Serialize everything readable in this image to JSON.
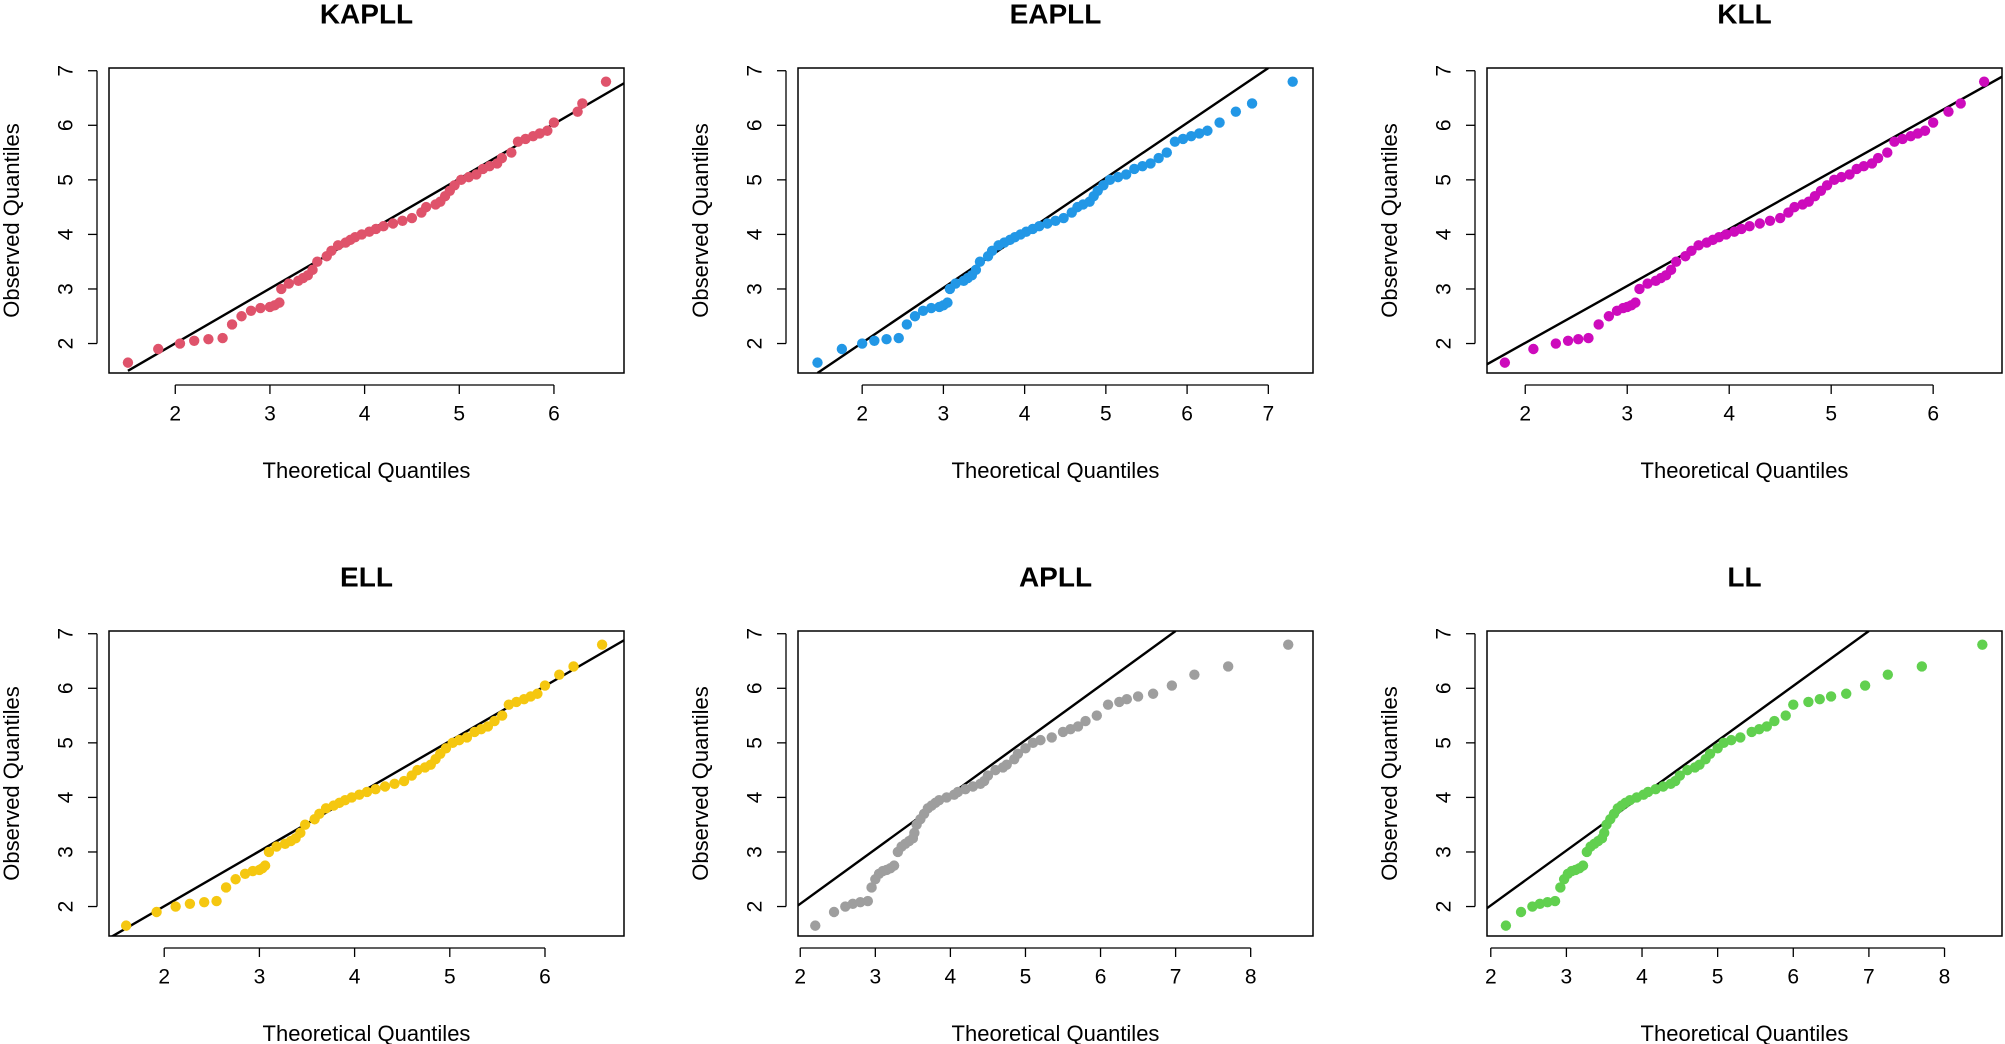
{
  "chart_data": [
    {
      "type": "scatter",
      "title": "KAPLL",
      "xlabel": "Theoretical Quantiles",
      "ylabel": "Observed Quantiles",
      "color": "#DF536B",
      "x": [
        1.5,
        1.82,
        2.05,
        2.2,
        2.35,
        2.5,
        2.6,
        2.7,
        2.8,
        2.9,
        3.0,
        3.05,
        3.1,
        3.12,
        3.2,
        3.3,
        3.35,
        3.4,
        3.45,
        3.5,
        3.6,
        3.65,
        3.72,
        3.8,
        3.85,
        3.9,
        3.97,
        4.05,
        4.12,
        4.2,
        4.3,
        4.4,
        4.5,
        4.6,
        4.65,
        4.75,
        4.8,
        4.85,
        4.9,
        4.95,
        5.02,
        5.1,
        5.18,
        5.25,
        5.32,
        5.4,
        5.45,
        5.55,
        5.62,
        5.7,
        5.78,
        5.85,
        5.93,
        6.0,
        6.25,
        6.3,
        6.55
      ],
      "y": [
        1.65,
        1.9,
        2.0,
        2.05,
        2.08,
        2.1,
        2.35,
        2.5,
        2.6,
        2.65,
        2.67,
        2.7,
        2.75,
        3.0,
        3.1,
        3.15,
        3.2,
        3.25,
        3.35,
        3.5,
        3.6,
        3.7,
        3.8,
        3.85,
        3.9,
        3.95,
        4.0,
        4.05,
        4.1,
        4.15,
        4.2,
        4.25,
        4.3,
        4.4,
        4.5,
        4.55,
        4.6,
        4.7,
        4.8,
        4.9,
        5.0,
        5.05,
        5.1,
        5.2,
        5.25,
        5.3,
        5.4,
        5.5,
        5.7,
        5.75,
        5.8,
        5.85,
        5.9,
        6.05,
        6.25,
        6.4,
        6.8
      ],
      "line": {
        "x": [
          1.5,
          6.74
        ],
        "y": [
          1.5,
          6.77
        ],
        "color": "#000000"
      },
      "xlim": [
        1.3,
        6.74
      ],
      "ylim": [
        1.46,
        7.05
      ],
      "xticks": [
        2,
        3,
        4,
        5,
        6
      ],
      "yticks": [
        2,
        3,
        4,
        5,
        6,
        7
      ]
    },
    {
      "type": "scatter",
      "title": "EAPLL",
      "xlabel": "Theoretical Quantiles",
      "ylabel": "Observed Quantiles",
      "color": "#2297E6",
      "x": [
        1.45,
        1.75,
        2.0,
        2.15,
        2.3,
        2.45,
        2.55,
        2.65,
        2.75,
        2.85,
        2.95,
        3.0,
        3.05,
        3.08,
        3.15,
        3.25,
        3.3,
        3.35,
        3.4,
        3.45,
        3.55,
        3.6,
        3.68,
        3.75,
        3.82,
        3.88,
        3.95,
        4.02,
        4.1,
        4.18,
        4.28,
        4.38,
        4.48,
        4.58,
        4.65,
        4.72,
        4.8,
        4.85,
        4.9,
        4.97,
        5.05,
        5.15,
        5.25,
        5.35,
        5.45,
        5.55,
        5.65,
        5.75,
        5.85,
        5.95,
        6.05,
        6.15,
        6.25,
        6.4,
        6.6,
        6.8,
        7.3
      ],
      "y": [
        1.65,
        1.9,
        2.0,
        2.05,
        2.08,
        2.1,
        2.35,
        2.5,
        2.6,
        2.65,
        2.67,
        2.7,
        2.75,
        3.0,
        3.1,
        3.15,
        3.2,
        3.25,
        3.35,
        3.5,
        3.6,
        3.7,
        3.8,
        3.85,
        3.9,
        3.95,
        4.0,
        4.05,
        4.1,
        4.15,
        4.2,
        4.25,
        4.3,
        4.4,
        4.5,
        4.55,
        4.6,
        4.7,
        4.8,
        4.9,
        5.0,
        5.05,
        5.1,
        5.2,
        5.25,
        5.3,
        5.4,
        5.5,
        5.7,
        5.75,
        5.8,
        5.85,
        5.9,
        6.05,
        6.25,
        6.4,
        6.8
      ],
      "line": {
        "x": [
          1.45,
          7.0
        ],
        "y": [
          1.46,
          7.05
        ],
        "color": "#000000"
      },
      "xlim": [
        1.21,
        7.55
      ],
      "ylim": [
        1.46,
        7.05
      ],
      "xticks": [
        2,
        3,
        4,
        5,
        6,
        7
      ],
      "yticks": [
        2,
        3,
        4,
        5,
        6,
        7
      ]
    },
    {
      "type": "scatter",
      "title": "KLL",
      "xlabel": "Theoretical Quantiles",
      "ylabel": "Observed Quantiles",
      "color": "#CD0BBC",
      "x": [
        1.8,
        2.08,
        2.3,
        2.42,
        2.52,
        2.62,
        2.72,
        2.82,
        2.9,
        2.96,
        3.0,
        3.04,
        3.08,
        3.12,
        3.2,
        3.28,
        3.33,
        3.38,
        3.43,
        3.48,
        3.57,
        3.63,
        3.7,
        3.78,
        3.84,
        3.9,
        3.97,
        4.05,
        4.12,
        4.2,
        4.3,
        4.4,
        4.5,
        4.58,
        4.64,
        4.72,
        4.78,
        4.84,
        4.9,
        4.96,
        5.03,
        5.1,
        5.18,
        5.25,
        5.32,
        5.4,
        5.46,
        5.55,
        5.62,
        5.7,
        5.78,
        5.85,
        5.92,
        6.0,
        6.15,
        6.27,
        6.5
      ],
      "y": [
        1.65,
        1.9,
        2.0,
        2.05,
        2.08,
        2.1,
        2.35,
        2.5,
        2.6,
        2.65,
        2.67,
        2.7,
        2.75,
        3.0,
        3.1,
        3.15,
        3.2,
        3.25,
        3.35,
        3.5,
        3.6,
        3.7,
        3.8,
        3.85,
        3.9,
        3.95,
        4.0,
        4.05,
        4.1,
        4.15,
        4.2,
        4.25,
        4.3,
        4.4,
        4.5,
        4.55,
        4.6,
        4.7,
        4.8,
        4.9,
        5.0,
        5.05,
        5.1,
        5.2,
        5.25,
        5.3,
        5.4,
        5.5,
        5.7,
        5.75,
        5.8,
        5.85,
        5.9,
        6.05,
        6.25,
        6.4,
        6.8
      ],
      "line": {
        "x": [
          1.625,
          6.675
        ],
        "y": [
          1.62,
          6.89
        ],
        "color": "#000000"
      },
      "xlim": [
        1.625,
        6.675
      ],
      "ylim": [
        1.46,
        7.05
      ],
      "xticks": [
        2,
        3,
        4,
        5,
        6
      ],
      "yticks": [
        2,
        3,
        4,
        5,
        6,
        7
      ]
    },
    {
      "type": "scatter",
      "title": "ELL",
      "xlabel": "Theoretical Quantiles",
      "ylabel": "Observed Quantiles",
      "color": "#F5C710",
      "x": [
        1.6,
        1.92,
        2.12,
        2.27,
        2.42,
        2.55,
        2.65,
        2.75,
        2.85,
        2.93,
        3.0,
        3.03,
        3.06,
        3.1,
        3.18,
        3.27,
        3.33,
        3.38,
        3.43,
        3.48,
        3.58,
        3.63,
        3.7,
        3.78,
        3.84,
        3.9,
        3.97,
        4.05,
        4.13,
        4.22,
        4.32,
        4.42,
        4.52,
        4.6,
        4.66,
        4.74,
        4.8,
        4.85,
        4.9,
        4.96,
        5.03,
        5.1,
        5.18,
        5.26,
        5.33,
        5.4,
        5.47,
        5.55,
        5.62,
        5.7,
        5.78,
        5.85,
        5.92,
        6.0,
        6.15,
        6.3,
        6.6
      ],
      "y": [
        1.65,
        1.9,
        2.0,
        2.05,
        2.08,
        2.1,
        2.35,
        2.5,
        2.6,
        2.65,
        2.67,
        2.7,
        2.75,
        3.0,
        3.1,
        3.15,
        3.2,
        3.25,
        3.35,
        3.5,
        3.6,
        3.7,
        3.8,
        3.85,
        3.9,
        3.95,
        4.0,
        4.05,
        4.1,
        4.15,
        4.2,
        4.25,
        4.3,
        4.4,
        4.5,
        4.55,
        4.6,
        4.7,
        4.8,
        4.9,
        5.0,
        5.05,
        5.1,
        5.2,
        5.25,
        5.3,
        5.4,
        5.5,
        5.7,
        5.75,
        5.8,
        5.85,
        5.9,
        6.05,
        6.25,
        6.4,
        6.8
      ],
      "line": {
        "x": [
          1.42,
          6.83
        ],
        "y": [
          1.42,
          6.88
        ],
        "color": "#000000"
      },
      "xlim": [
        1.42,
        6.83
      ],
      "ylim": [
        1.46,
        7.05
      ],
      "xticks": [
        2,
        3,
        4,
        5,
        6
      ],
      "yticks": [
        2,
        3,
        4,
        5,
        6,
        7
      ]
    },
    {
      "type": "scatter",
      "title": "APLL",
      "xlabel": "Theoretical Quantiles",
      "ylabel": "Observed Quantiles",
      "color": "#9E9E9E",
      "x": [
        2.2,
        2.45,
        2.6,
        2.7,
        2.8,
        2.9,
        2.95,
        3.0,
        3.05,
        3.1,
        3.15,
        3.2,
        3.25,
        3.3,
        3.35,
        3.4,
        3.45,
        3.5,
        3.52,
        3.55,
        3.6,
        3.65,
        3.7,
        3.75,
        3.8,
        3.85,
        3.95,
        4.05,
        4.1,
        4.2,
        4.3,
        4.4,
        4.45,
        4.5,
        4.6,
        4.7,
        4.75,
        4.85,
        4.9,
        5.0,
        5.1,
        5.2,
        5.35,
        5.5,
        5.6,
        5.7,
        5.8,
        5.95,
        6.1,
        6.25,
        6.35,
        6.5,
        6.7,
        6.95,
        7.25,
        7.7,
        8.5
      ],
      "y": [
        1.65,
        1.9,
        2.0,
        2.05,
        2.08,
        2.1,
        2.35,
        2.5,
        2.6,
        2.65,
        2.67,
        2.7,
        2.75,
        3.0,
        3.1,
        3.15,
        3.2,
        3.25,
        3.35,
        3.5,
        3.6,
        3.7,
        3.8,
        3.85,
        3.9,
        3.95,
        4.0,
        4.05,
        4.1,
        4.15,
        4.2,
        4.25,
        4.3,
        4.4,
        4.5,
        4.55,
        4.6,
        4.7,
        4.8,
        4.9,
        5.0,
        5.05,
        5.1,
        5.2,
        5.25,
        5.3,
        5.4,
        5.5,
        5.7,
        5.75,
        5.8,
        5.85,
        5.9,
        6.05,
        6.25,
        6.4,
        6.8
      ],
      "line": {
        "x": [
          1.97,
          7.0
        ],
        "y": [
          2.02,
          7.05
        ],
        "color": "#000000"
      },
      "xlim": [
        1.97,
        8.83
      ],
      "ylim": [
        1.46,
        7.05
      ],
      "xticks": [
        2,
        3,
        4,
        5,
        6,
        7,
        8
      ],
      "yticks": [
        2,
        3,
        4,
        5,
        6,
        7
      ]
    },
    {
      "type": "scatter",
      "title": "LL",
      "xlabel": "Theoretical Quantiles",
      "ylabel": "Observed Quantiles",
      "color": "#61D04F",
      "x": [
        2.2,
        2.4,
        2.55,
        2.65,
        2.75,
        2.85,
        2.92,
        2.97,
        3.02,
        3.07,
        3.12,
        3.17,
        3.22,
        3.27,
        3.32,
        3.37,
        3.42,
        3.47,
        3.5,
        3.53,
        3.58,
        3.63,
        3.68,
        3.73,
        3.78,
        3.84,
        3.93,
        4.02,
        4.08,
        4.18,
        4.28,
        4.38,
        4.44,
        4.5,
        4.6,
        4.7,
        4.76,
        4.84,
        4.9,
        5.0,
        5.08,
        5.18,
        5.3,
        5.45,
        5.55,
        5.65,
        5.75,
        5.9,
        6.0,
        6.2,
        6.35,
        6.5,
        6.7,
        6.95,
        7.25,
        7.7,
        8.5
      ],
      "y": [
        1.65,
        1.9,
        2.0,
        2.05,
        2.08,
        2.1,
        2.35,
        2.5,
        2.6,
        2.65,
        2.67,
        2.7,
        2.75,
        3.0,
        3.1,
        3.15,
        3.2,
        3.25,
        3.35,
        3.5,
        3.6,
        3.7,
        3.8,
        3.85,
        3.9,
        3.95,
        4.0,
        4.05,
        4.1,
        4.15,
        4.2,
        4.25,
        4.3,
        4.4,
        4.5,
        4.55,
        4.6,
        4.7,
        4.8,
        4.9,
        5.0,
        5.05,
        5.1,
        5.2,
        5.25,
        5.3,
        5.4,
        5.5,
        5.7,
        5.75,
        5.8,
        5.85,
        5.9,
        6.05,
        6.25,
        6.4,
        6.8
      ],
      "line": {
        "x": [
          1.95,
          7.0
        ],
        "y": [
          1.97,
          7.05
        ],
        "color": "#000000"
      },
      "xlim": [
        1.95,
        8.76
      ],
      "ylim": [
        1.46,
        7.05
      ],
      "xticks": [
        2,
        3,
        4,
        5,
        6,
        7,
        8
      ],
      "yticks": [
        2,
        3,
        4,
        5,
        6,
        7
      ]
    }
  ]
}
